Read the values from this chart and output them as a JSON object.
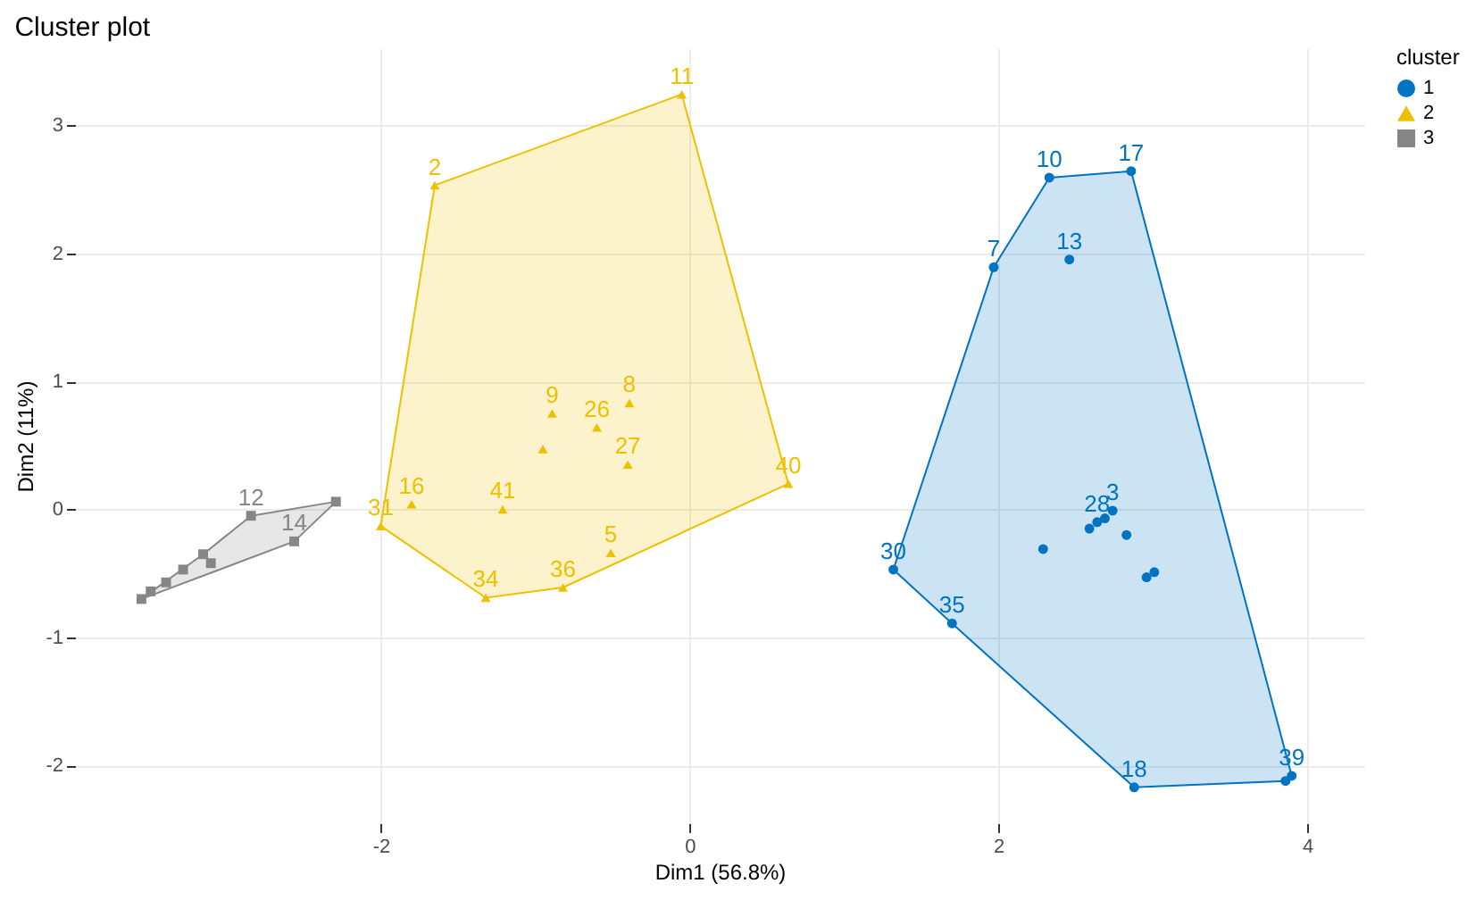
{
  "chart_data": {
    "type": "scatter",
    "title": "Cluster plot",
    "xlabel": "Dim1 (56.8%)",
    "ylabel": "Dim2 (11%)",
    "legend_title": "cluster",
    "legend": "right",
    "grid": true,
    "xlim": [
      -3.98,
      4.37
    ],
    "xticks": [
      -2,
      0,
      2,
      4
    ],
    "ylim": [
      -2.45,
      3.6
    ],
    "yticks": [
      -2,
      -1,
      0,
      1,
      2,
      3
    ],
    "series": [
      {
        "type": "area",
        "color": "#0073c2",
        "x": [
          1.32,
          1.97,
          2.33,
          2.86,
          3.9,
          3.86,
          2.88,
          1.7,
          1.32
        ],
        "values": [
          -0.47,
          1.89,
          2.59,
          2.64,
          -2.08,
          -2.12,
          -2.17,
          -0.89,
          -0.47
        ]
      },
      {
        "type": "area",
        "color": "#efc000",
        "x": [
          -2.0,
          -1.65,
          -0.05,
          0.64,
          -0.82,
          -1.32,
          -2.0
        ],
        "values": [
          -0.13,
          2.53,
          3.24,
          0.2,
          -0.61,
          -0.69,
          -0.13
        ]
      },
      {
        "type": "area",
        "color": "#868686",
        "x": [
          -2.84,
          -2.29,
          -2.56,
          -3.55,
          -3.15,
          -2.84
        ],
        "values": [
          -0.05,
          0.06,
          -0.25,
          -0.7,
          -0.35,
          -0.05
        ]
      },
      {
        "name": "1",
        "marker": "circle",
        "color": "#0073c2",
        "x": [
          2.33,
          2.86,
          1.97,
          2.46,
          1.32,
          1.7,
          2.88,
          3.86,
          3.9,
          2.29,
          2.59,
          2.64,
          2.69,
          2.74,
          2.83,
          2.96,
          3.01
        ],
        "values": [
          2.59,
          2.64,
          1.89,
          1.95,
          -0.47,
          -0.89,
          -2.17,
          -2.12,
          -2.08,
          -0.31,
          -0.15,
          -0.1,
          -0.07,
          -0.01,
          -0.2,
          -0.53,
          -0.49
        ]
      },
      {
        "name": "2",
        "marker": "triangle",
        "color": "#efc000",
        "x": [
          -0.05,
          -1.65,
          0.64,
          -1.32,
          -0.82,
          -0.51,
          -1.21,
          -0.89,
          -0.39,
          -0.6,
          -0.4,
          -2.0,
          -1.8,
          -0.95
        ],
        "values": [
          3.24,
          2.53,
          0.2,
          -0.69,
          -0.61,
          -0.34,
          0.0,
          0.75,
          0.83,
          0.64,
          0.35,
          -0.13,
          0.04,
          0.47
        ]
      },
      {
        "name": "3",
        "marker": "square",
        "color": "#868686",
        "x": [
          -2.29,
          -2.84,
          -2.56,
          -3.55,
          -3.49,
          -3.39,
          -3.28,
          -3.15,
          -3.1
        ],
        "values": [
          0.06,
          -0.05,
          -0.25,
          -0.7,
          -0.64,
          -0.57,
          -0.47,
          -0.35,
          -0.42
        ]
      }
    ],
    "annotations": [
      {
        "text": "10",
        "x": 2.33,
        "y": 2.59
      },
      {
        "text": "17",
        "x": 2.86,
        "y": 2.64
      },
      {
        "text": "7",
        "x": 1.97,
        "y": 1.89
      },
      {
        "text": "13",
        "x": 2.46,
        "y": 1.95
      },
      {
        "text": "30",
        "x": 1.32,
        "y": -0.47
      },
      {
        "text": "35",
        "x": 1.7,
        "y": -0.89
      },
      {
        "text": "18",
        "x": 2.88,
        "y": -2.17
      },
      {
        "text": "39",
        "x": 3.9,
        "y": -2.08
      },
      {
        "text": "28",
        "x": 2.64,
        "y": -0.1
      },
      {
        "text": "3",
        "x": 2.74,
        "y": -0.01
      },
      {
        "text": "11",
        "x": -0.05,
        "y": 3.24
      },
      {
        "text": "2",
        "x": -1.65,
        "y": 2.53
      },
      {
        "text": "40",
        "x": 0.64,
        "y": 0.2
      },
      {
        "text": "34",
        "x": -1.32,
        "y": -0.69
      },
      {
        "text": "36",
        "x": -0.82,
        "y": -0.61
      },
      {
        "text": "5",
        "x": -0.51,
        "y": -0.34
      },
      {
        "text": "41",
        "x": -1.21,
        "y": 0.0
      },
      {
        "text": "9",
        "x": -0.89,
        "y": 0.75
      },
      {
        "text": "8",
        "x": -0.39,
        "y": 0.83
      },
      {
        "text": "26",
        "x": -0.6,
        "y": 0.64
      },
      {
        "text": "27",
        "x": -0.4,
        "y": 0.35
      },
      {
        "text": "31",
        "x": -2.0,
        "y": -0.13
      },
      {
        "text": "16",
        "x": -1.8,
        "y": 0.04
      },
      {
        "text": "12",
        "x": -2.84,
        "y": -0.05
      },
      {
        "text": "14",
        "x": -2.56,
        "y": -0.25
      }
    ]
  }
}
